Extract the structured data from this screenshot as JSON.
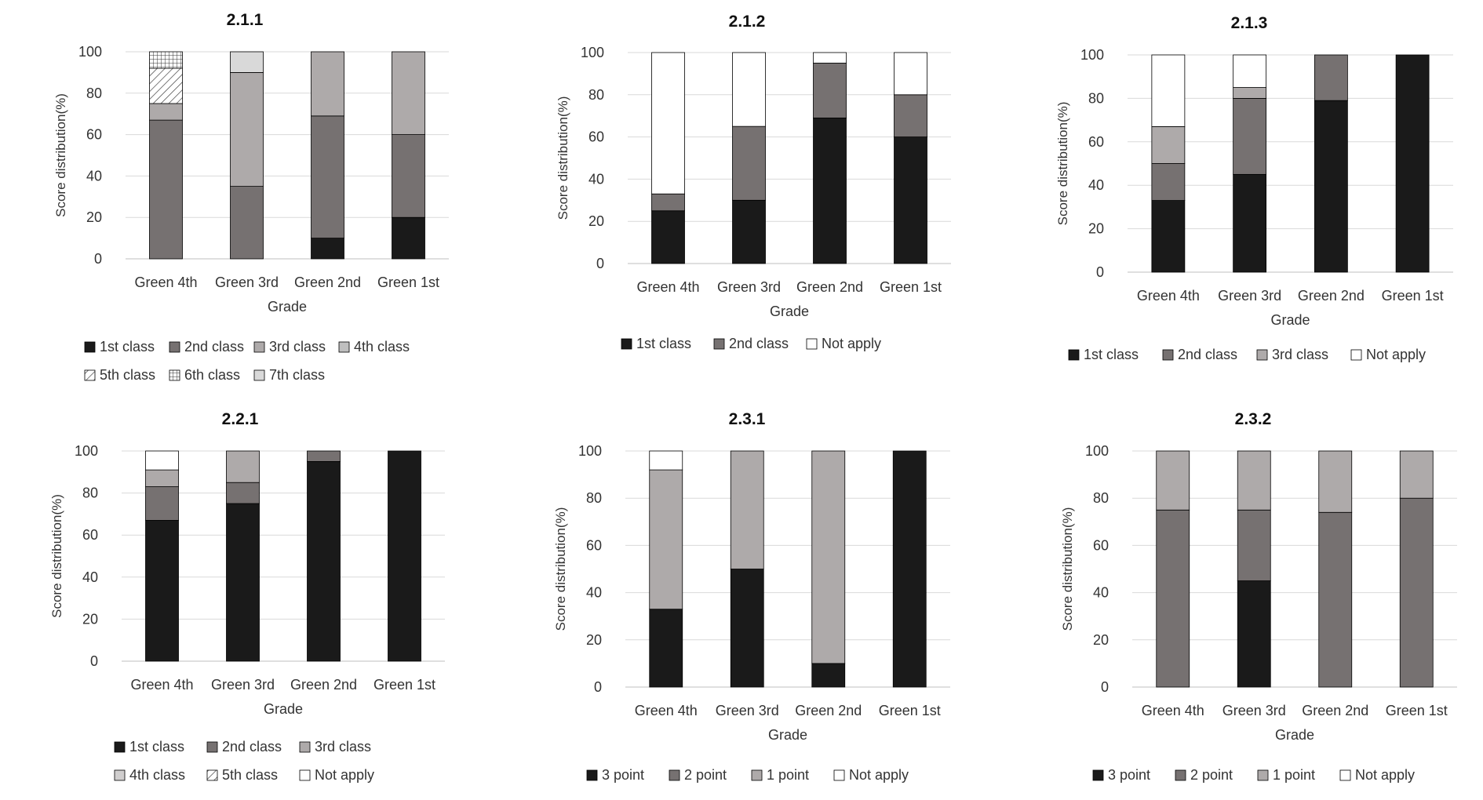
{
  "chart_data": [
    {
      "id": "c211",
      "type": "bar",
      "stacked": true,
      "title": "2.1.1",
      "xlabel": "Grade",
      "ylabel": "Score distribution(%)",
      "ylim": [
        0,
        100
      ],
      "yticks": [
        "0",
        "20",
        "40",
        "60",
        "80",
        "100"
      ],
      "grid": true,
      "legend_position": "bottom",
      "categories": [
        "Green 4th",
        "Green 3rd",
        "Green 2nd",
        "Green 1st"
      ],
      "series": [
        {
          "name": "1st class",
          "color": "#1a1a1a",
          "pattern": "solid",
          "values": [
            0,
            0,
            10,
            20
          ]
        },
        {
          "name": "2nd class",
          "color": "#767171",
          "pattern": "solid",
          "values": [
            67,
            35,
            59,
            40
          ]
        },
        {
          "name": "3rd class",
          "color": "#aeaaaa",
          "pattern": "solid",
          "values": [
            8,
            55,
            31,
            40
          ]
        },
        {
          "name": "4th class",
          "color": "#bfbfbf",
          "pattern": "solid",
          "values": [
            0,
            0,
            0,
            0
          ]
        },
        {
          "name": "5th class",
          "color": "#ffffff",
          "pattern": "diagonal",
          "values": [
            17,
            0,
            0,
            0
          ]
        },
        {
          "name": "6th class",
          "color": "#ffffff",
          "pattern": "grid",
          "values": [
            8,
            0,
            0,
            0
          ]
        },
        {
          "name": "7th class",
          "color": "#d9d9d9",
          "pattern": "solid",
          "values": [
            0,
            10,
            0,
            0
          ]
        }
      ]
    },
    {
      "id": "c212",
      "type": "bar",
      "stacked": true,
      "title": "2.1.2",
      "xlabel": "Grade",
      "ylabel": "Score distribution(%)",
      "ylim": [
        0,
        100
      ],
      "yticks": [
        "0",
        "20",
        "40",
        "60",
        "80",
        "100"
      ],
      "grid": true,
      "legend_position": "bottom",
      "categories": [
        "Green 4th",
        "Green 3rd",
        "Green 2nd",
        "Green 1st"
      ],
      "series": [
        {
          "name": "1st class",
          "color": "#1a1a1a",
          "pattern": "solid",
          "values": [
            25,
            30,
            69,
            60
          ]
        },
        {
          "name": "2nd class",
          "color": "#767171",
          "pattern": "solid",
          "values": [
            8,
            35,
            26,
            20
          ]
        },
        {
          "name": "Not apply",
          "color": "#ffffff",
          "pattern": "solid",
          "values": [
            67,
            35,
            5,
            20
          ]
        }
      ]
    },
    {
      "id": "c213",
      "type": "bar",
      "stacked": true,
      "title": "2.1.3",
      "xlabel": "Grade",
      "ylabel": "Score distribution(%)",
      "ylim": [
        0,
        100
      ],
      "yticks": [
        "0",
        "20",
        "40",
        "60",
        "80",
        "100"
      ],
      "grid": true,
      "legend_position": "bottom",
      "categories": [
        "Green 4th",
        "Green 3rd",
        "Green 2nd",
        "Green 1st"
      ],
      "series": [
        {
          "name": "1st class",
          "color": "#1a1a1a",
          "pattern": "solid",
          "values": [
            33,
            45,
            79,
            100
          ]
        },
        {
          "name": "2nd class",
          "color": "#767171",
          "pattern": "solid",
          "values": [
            17,
            35,
            21,
            0
          ]
        },
        {
          "name": "3rd class",
          "color": "#aeaaaa",
          "pattern": "solid",
          "values": [
            17,
            5,
            0,
            0
          ]
        },
        {
          "name": "Not apply",
          "color": "#ffffff",
          "pattern": "solid",
          "values": [
            33,
            15,
            0,
            0
          ]
        }
      ]
    },
    {
      "id": "c221",
      "type": "bar",
      "stacked": true,
      "title": "2.2.1",
      "xlabel": "Grade",
      "ylabel": "Score distribution(%)",
      "ylim": [
        0,
        100
      ],
      "yticks": [
        "0",
        "20",
        "40",
        "60",
        "80",
        "100"
      ],
      "grid": true,
      "legend_position": "bottom",
      "categories": [
        "Green 4th",
        "Green 3rd",
        "Green 2nd",
        "Green 1st"
      ],
      "series": [
        {
          "name": "1st class",
          "color": "#1a1a1a",
          "pattern": "solid",
          "values": [
            67,
            75,
            95,
            100
          ]
        },
        {
          "name": "2nd class",
          "color": "#767171",
          "pattern": "solid",
          "values": [
            16,
            10,
            5,
            0
          ]
        },
        {
          "name": "3rd class",
          "color": "#aeaaaa",
          "pattern": "solid",
          "values": [
            8,
            15,
            0,
            0
          ]
        },
        {
          "name": "4th class",
          "color": "#d0cece",
          "pattern": "solid",
          "values": [
            0,
            0,
            0,
            0
          ]
        },
        {
          "name": "5th class",
          "color": "#ffffff",
          "pattern": "diagonal",
          "values": [
            0,
            0,
            0,
            0
          ]
        },
        {
          "name": "Not apply",
          "color": "#ffffff",
          "pattern": "solid",
          "values": [
            9,
            0,
            0,
            0
          ]
        }
      ]
    },
    {
      "id": "c231",
      "type": "bar",
      "stacked": true,
      "title": "2.3.1",
      "xlabel": "Grade",
      "ylabel": "Score distribution(%)",
      "ylim": [
        0,
        100
      ],
      "yticks": [
        "0",
        "20",
        "40",
        "60",
        "80",
        "100"
      ],
      "grid": true,
      "legend_position": "bottom",
      "categories": [
        "Green 4th",
        "Green 3rd",
        "Green 2nd",
        "Green 1st"
      ],
      "series": [
        {
          "name": "3 point",
          "color": "#1a1a1a",
          "pattern": "solid",
          "values": [
            33,
            50,
            10,
            100
          ]
        },
        {
          "name": "2 point",
          "color": "#767171",
          "pattern": "solid",
          "values": [
            0,
            0,
            0,
            0
          ]
        },
        {
          "name": "1 point",
          "color": "#aeaaaa",
          "pattern": "solid",
          "values": [
            59,
            50,
            90,
            0
          ]
        },
        {
          "name": "Not apply",
          "color": "#ffffff",
          "pattern": "solid",
          "values": [
            8,
            0,
            0,
            0
          ]
        }
      ]
    },
    {
      "id": "c232",
      "type": "bar",
      "stacked": true,
      "title": "2.3.2",
      "xlabel": "Grade",
      "ylabel": "Score distribution(%)",
      "ylim": [
        0,
        100
      ],
      "yticks": [
        "0",
        "20",
        "40",
        "60",
        "80",
        "100"
      ],
      "grid": true,
      "legend_position": "bottom",
      "categories": [
        "Green 4th",
        "Green 3rd",
        "Green 2nd",
        "Green 1st"
      ],
      "series": [
        {
          "name": "3 point",
          "color": "#1a1a1a",
          "pattern": "solid",
          "values": [
            0,
            45,
            0,
            0
          ]
        },
        {
          "name": "2 point",
          "color": "#767171",
          "pattern": "solid",
          "values": [
            75,
            30,
            74,
            80
          ]
        },
        {
          "name": "1 point",
          "color": "#aeaaaa",
          "pattern": "solid",
          "values": [
            25,
            25,
            26,
            20
          ]
        },
        {
          "name": "Not apply",
          "color": "#ffffff",
          "pattern": "solid",
          "values": [
            0,
            0,
            0,
            0
          ]
        }
      ]
    }
  ]
}
